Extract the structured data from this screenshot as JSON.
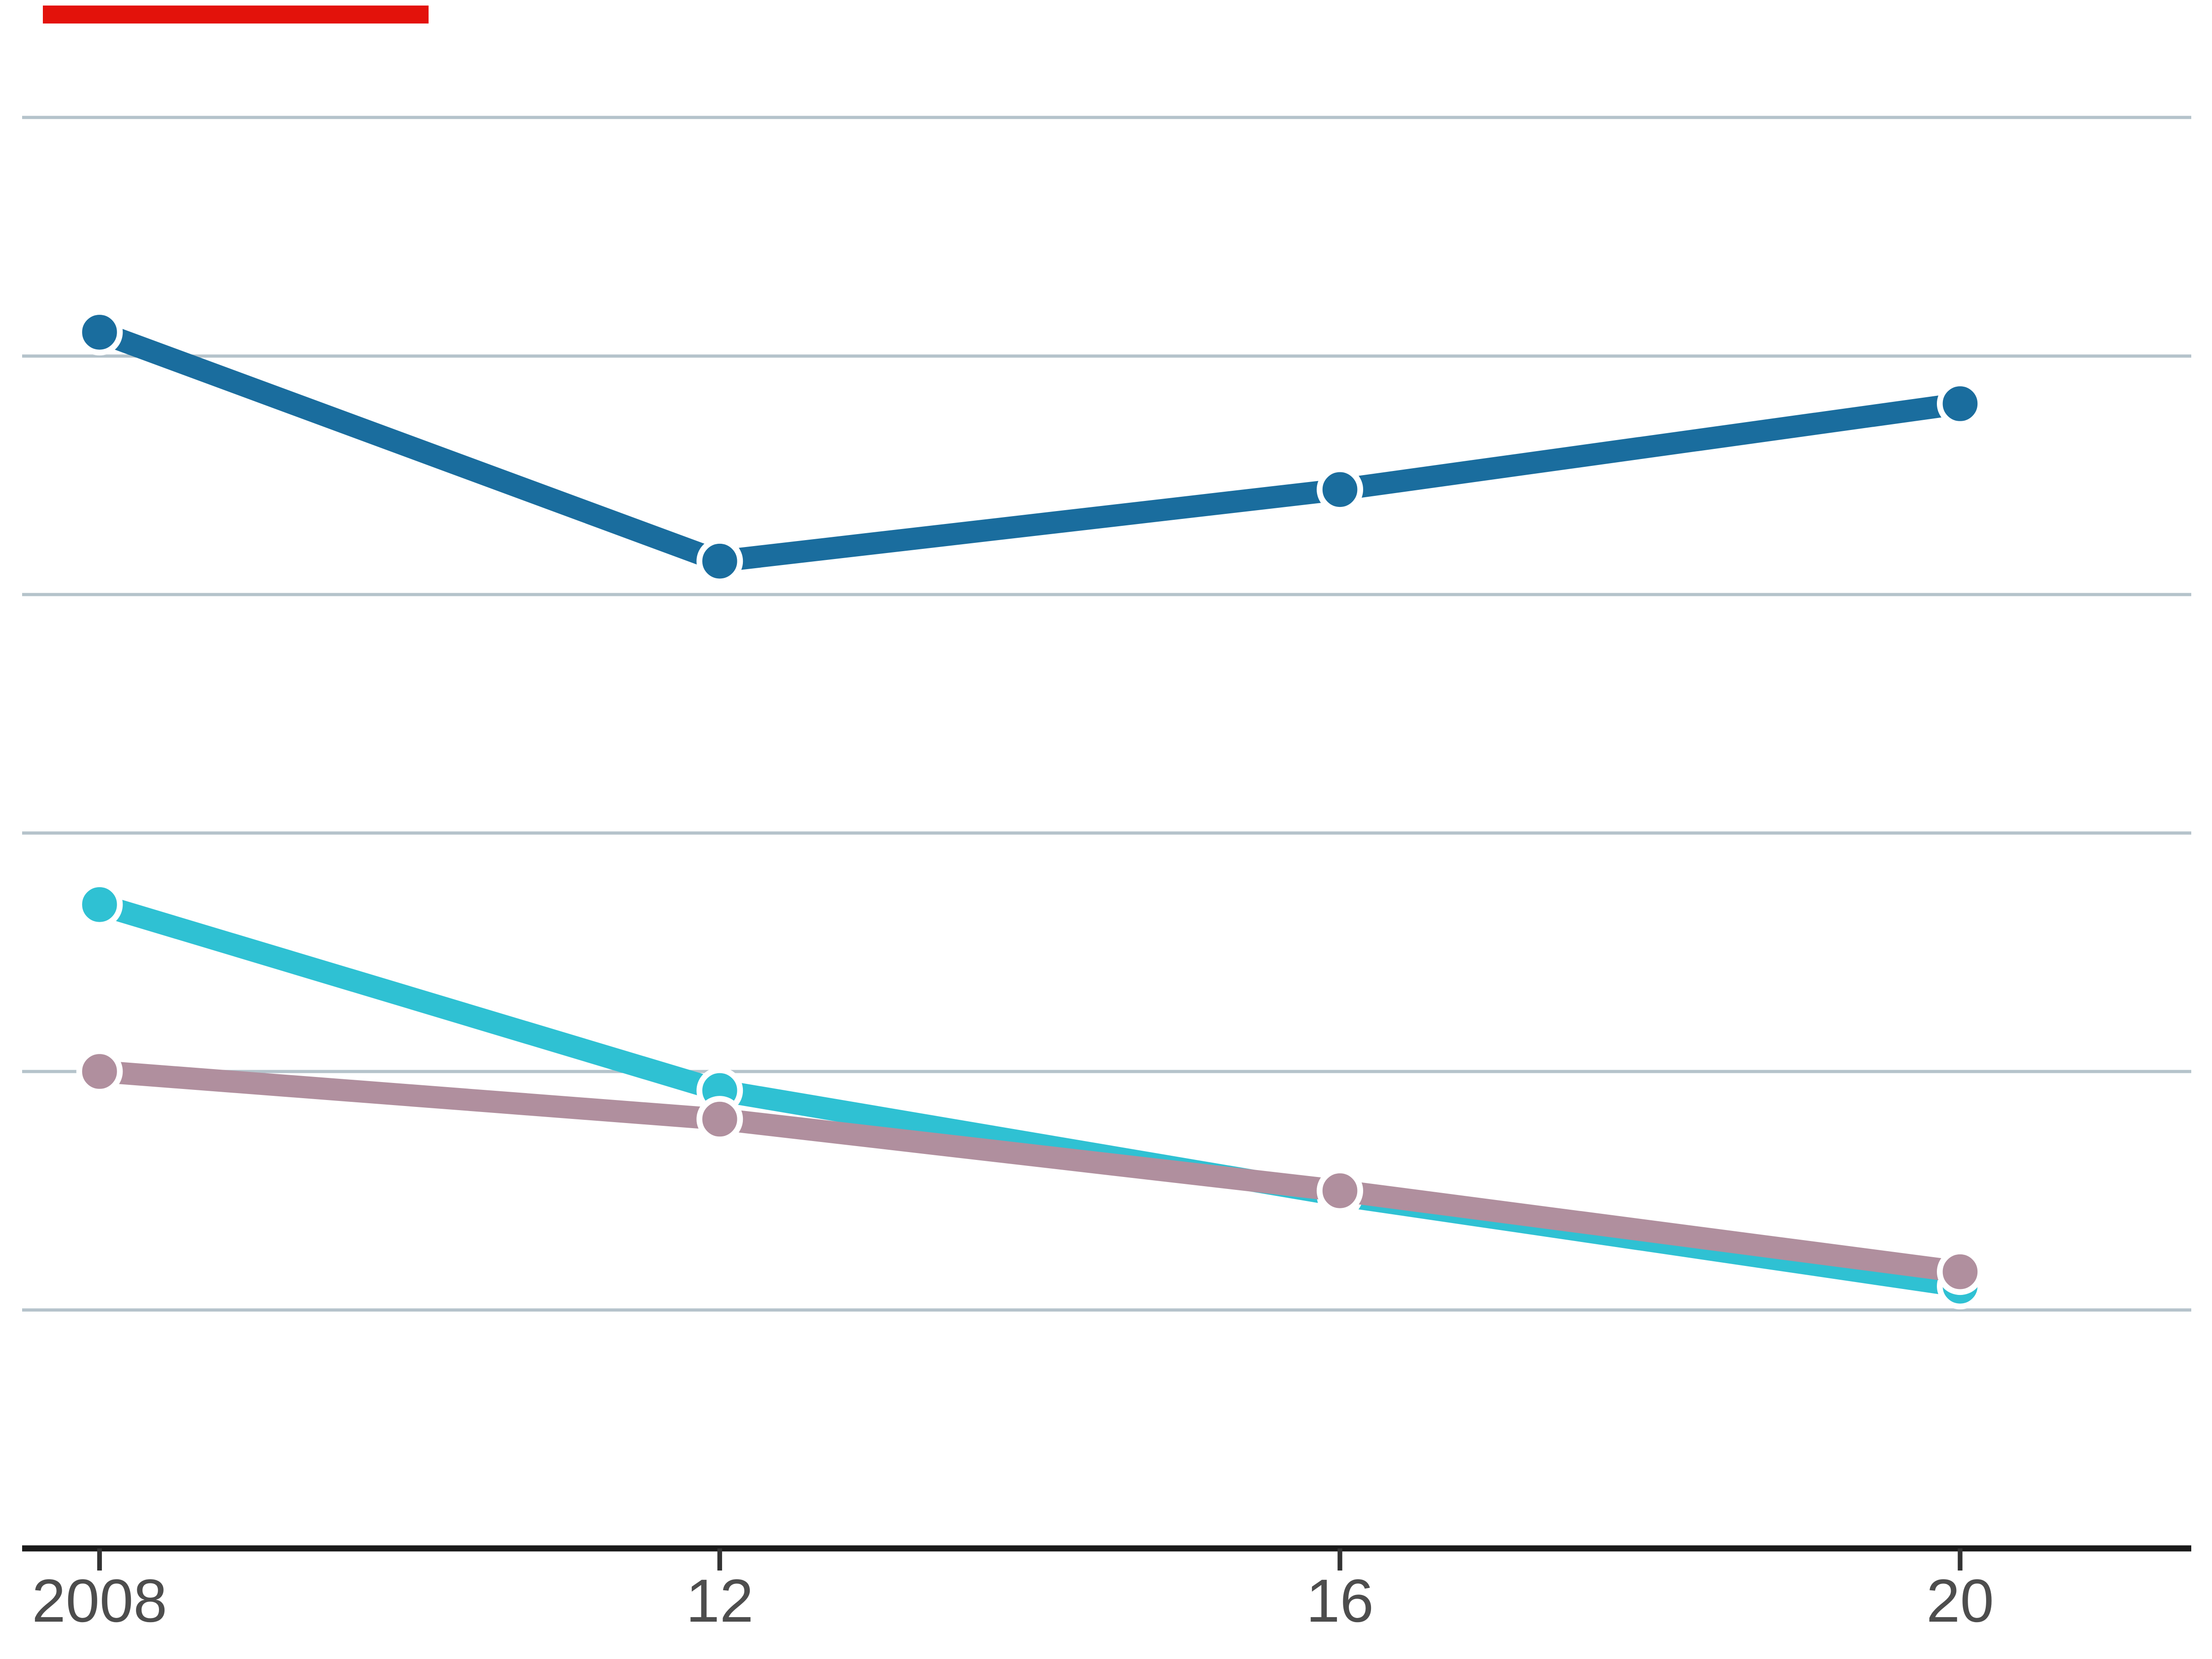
{
  "page": {
    "background": "#ffffff"
  },
  "brand_tab": {
    "color": "#e3120b"
  },
  "chart_data": {
    "type": "line",
    "title": "",
    "xlabel": "",
    "ylabel": "",
    "x": [
      2008,
      2012,
      2016,
      2020
    ],
    "x_tick_labels": [
      "2008",
      "12",
      "16",
      "20"
    ],
    "series": [
      {
        "name": "dark-blue-series",
        "color": "#1a6d9e",
        "values": [
          25.5,
          20.7,
          22.2,
          24.0
        ]
      },
      {
        "name": "cyan-series",
        "color": "#2fc1d3",
        "values": [
          13.5,
          9.6,
          7.4,
          5.5
        ]
      },
      {
        "name": "mauve-series",
        "color": "#b08f9e",
        "values": [
          10.0,
          9.0,
          7.5,
          5.8
        ]
      }
    ],
    "xlim": [
      2008,
      2021.5
    ],
    "ylim": [
      0,
      32.5
    ],
    "gridline_values": [
      5,
      10,
      15,
      20,
      25,
      30
    ],
    "grid": true,
    "legend": false,
    "marker": "circle-with-white-ring",
    "styles": {
      "gridline_color": "#b5c3cb",
      "axis_line_color": "#1a1a1a",
      "tick_color": "#333333",
      "tick_label_color": "#4d4d4d",
      "marker_ring_color": "#ffffff"
    }
  }
}
